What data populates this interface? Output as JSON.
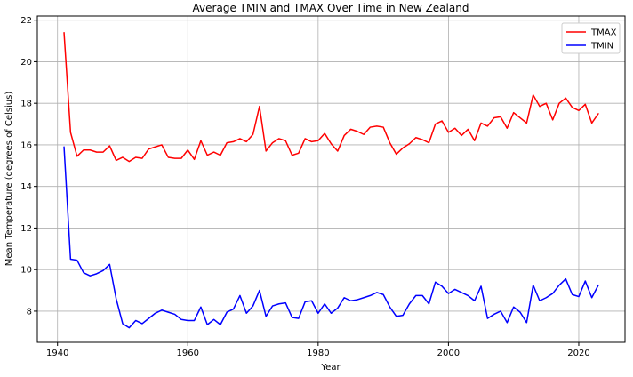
{
  "chart_data": {
    "type": "line",
    "title": "Average TMIN and TMAX Over Time in New Zealand",
    "xlabel": "Year",
    "ylabel": "Mean Temperature (degrees of Celsius)",
    "xlim": [
      1936.9,
      2027.1
    ],
    "ylim": [
      6.5,
      22.2
    ],
    "xticks": [
      1940,
      1960,
      1980,
      2000,
      2020
    ],
    "yticks": [
      8,
      10,
      12,
      14,
      16,
      18,
      20,
      22
    ],
    "grid": true,
    "legend_position": "top-right",
    "series": [
      {
        "name": "TMAX",
        "color": "#ff0000",
        "x": [
          1941,
          1942,
          1943,
          1944,
          1945,
          1946,
          1947,
          1948,
          1949,
          1950,
          1951,
          1952,
          1953,
          1954,
          1955,
          1956,
          1957,
          1958,
          1959,
          1960,
          1961,
          1962,
          1963,
          1964,
          1965,
          1966,
          1967,
          1968,
          1969,
          1970,
          1971,
          1972,
          1973,
          1974,
          1975,
          1976,
          1977,
          1978,
          1979,
          1980,
          1981,
          1982,
          1983,
          1984,
          1985,
          1986,
          1987,
          1988,
          1989,
          1990,
          1991,
          1992,
          1993,
          1994,
          1995,
          1996,
          1997,
          1998,
          1999,
          2000,
          2001,
          2002,
          2003,
          2004,
          2005,
          2006,
          2007,
          2008,
          2009,
          2010,
          2011,
          2012,
          2013,
          2014,
          2015,
          2016,
          2017,
          2018,
          2019,
          2020,
          2021,
          2022,
          2023
        ],
        "y": [
          21.4,
          16.6,
          15.45,
          15.75,
          15.75,
          15.65,
          15.65,
          15.95,
          15.25,
          15.4,
          15.2,
          15.4,
          15.35,
          15.8,
          15.9,
          16.0,
          15.4,
          15.35,
          15.35,
          15.75,
          15.3,
          16.2,
          15.5,
          15.65,
          15.5,
          16.1,
          16.15,
          16.3,
          16.15,
          16.5,
          17.85,
          15.7,
          16.1,
          16.3,
          16.2,
          15.5,
          15.6,
          16.3,
          16.15,
          16.2,
          16.55,
          16.05,
          15.7,
          16.45,
          16.75,
          16.65,
          16.5,
          16.85,
          16.9,
          16.85,
          16.1,
          15.55,
          15.85,
          16.05,
          16.35,
          16.25,
          16.1,
          17.0,
          17.15,
          16.6,
          16.8,
          16.45,
          16.75,
          16.2,
          17.05,
          16.9,
          17.3,
          17.35,
          16.8,
          17.55,
          17.3,
          17.05,
          18.4,
          17.85,
          18.0,
          17.2,
          18.0,
          18.25,
          17.8,
          17.65,
          17.95,
          17.05,
          17.5
        ]
      },
      {
        "name": "TMIN",
        "color": "#0000ff",
        "x": [
          1941,
          1942,
          1943,
          1944,
          1945,
          1946,
          1947,
          1948,
          1949,
          1950,
          1951,
          1952,
          1953,
          1954,
          1955,
          1956,
          1957,
          1958,
          1959,
          1960,
          1961,
          1962,
          1963,
          1964,
          1965,
          1966,
          1967,
          1968,
          1969,
          1970,
          1971,
          1972,
          1973,
          1974,
          1975,
          1976,
          1977,
          1978,
          1979,
          1980,
          1981,
          1982,
          1983,
          1984,
          1985,
          1986,
          1987,
          1988,
          1989,
          1990,
          1991,
          1992,
          1993,
          1994,
          1995,
          1996,
          1997,
          1998,
          1999,
          2000,
          2001,
          2002,
          2003,
          2004,
          2005,
          2006,
          2007,
          2008,
          2009,
          2010,
          2011,
          2012,
          2013,
          2014,
          2015,
          2016,
          2017,
          2018,
          2019,
          2020,
          2021,
          2022,
          2023
        ],
        "y": [
          15.9,
          10.5,
          10.45,
          9.85,
          9.7,
          9.8,
          9.95,
          10.25,
          8.6,
          7.4,
          7.2,
          7.55,
          7.4,
          7.65,
          7.9,
          8.05,
          7.95,
          7.85,
          7.6,
          7.55,
          7.55,
          8.2,
          7.35,
          7.6,
          7.35,
          7.95,
          8.1,
          8.75,
          7.9,
          8.25,
          9.0,
          7.75,
          8.25,
          8.35,
          8.4,
          7.7,
          7.65,
          8.45,
          8.5,
          7.9,
          8.35,
          7.9,
          8.15,
          8.65,
          8.5,
          8.55,
          8.65,
          8.75,
          8.9,
          8.8,
          8.2,
          7.75,
          7.8,
          8.35,
          8.75,
          8.75,
          8.35,
          9.4,
          9.2,
          8.85,
          9.05,
          8.9,
          8.75,
          8.5,
          9.2,
          7.65,
          7.85,
          8.0,
          7.45,
          8.2,
          7.95,
          7.45,
          9.25,
          8.5,
          8.65,
          8.85,
          9.25,
          9.55,
          8.8,
          8.7,
          9.45,
          8.65,
          9.25
        ]
      }
    ]
  }
}
